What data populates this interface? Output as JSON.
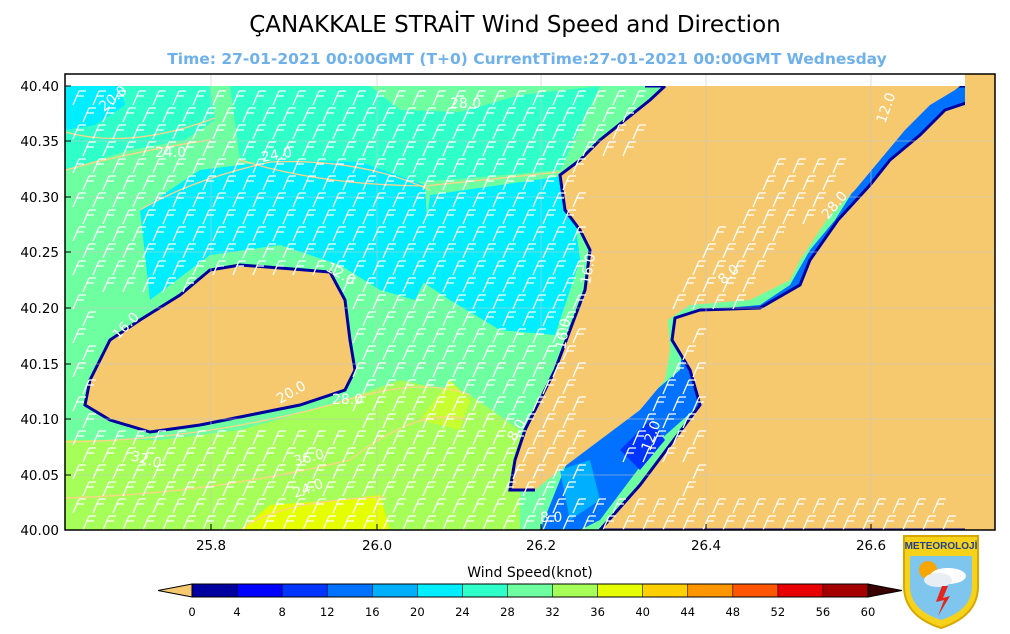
{
  "title": "ÇANAKKALE STRAİT  Wind Speed and Direction",
  "subtitle": "Time: 27-01-2021 00:00GMT (T+0)  CurrentTime:27-01-2021 00:00GMT Wednesday",
  "map": {
    "lon_ticks": [
      "25.8",
      "26.0",
      "26.2",
      "26.4",
      "26.6"
    ],
    "lat_ticks": [
      "40.40",
      "40.35",
      "40.30",
      "40.25",
      "40.20",
      "40.15",
      "40.10",
      "40.05",
      "40.00"
    ],
    "contour_labels": [
      "20.0",
      "28.0",
      "24.0",
      "24.0",
      "12.0",
      "8.0",
      "12.0",
      "28.0",
      "16.0",
      "16.0",
      "16.0",
      "20.0",
      "28.0",
      "32.0",
      "36.0",
      "24.0",
      "8.0",
      "12.0",
      "8.0"
    ],
    "land_color": "#f6c96e"
  },
  "colorbar": {
    "label": "Wind Speed(knot)",
    "ticks": [
      "0",
      "4",
      "8",
      "12",
      "16",
      "20",
      "24",
      "28",
      "32",
      "36",
      "40",
      "44",
      "48",
      "52",
      "56",
      "60"
    ],
    "colors": [
      "#00009e",
      "#0000ff",
      "#0035ff",
      "#0072ff",
      "#00b0ff",
      "#00eeff",
      "#2fffc8",
      "#6effa0",
      "#a6ff59",
      "#e6ff00",
      "#ffd000",
      "#ff9600",
      "#ff5500",
      "#e80000",
      "#a40000"
    ]
  },
  "logo": {
    "text": "METEOROLOJİ"
  }
}
